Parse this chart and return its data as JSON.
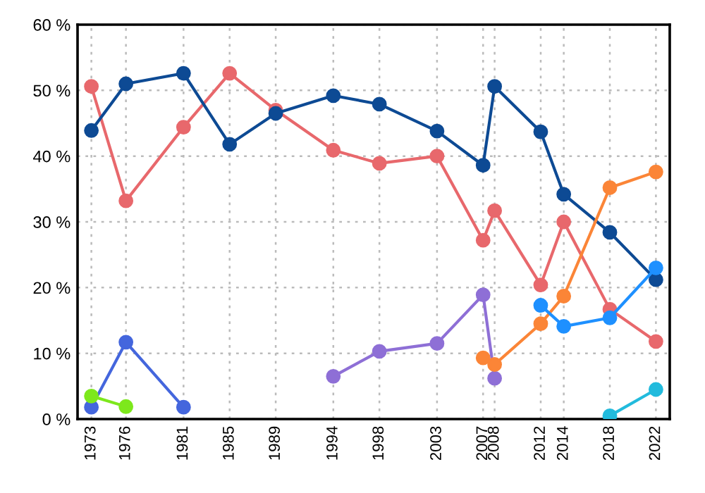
{
  "chart_data": {
    "type": "line",
    "marker": "circle",
    "line_style": "solid",
    "grid": true,
    "xlim": [
      1971.8,
      2023.2
    ],
    "xticks": [
      1973,
      1976,
      1981,
      1985,
      1989,
      1994,
      1998,
      2003,
      2007,
      2008,
      2012,
      2014,
      2018,
      2022
    ],
    "ylim": [
      0,
      60
    ],
    "yticks": [
      {
        "value": 0,
        "label": "0 %"
      },
      {
        "value": 10,
        "label": "10 %"
      },
      {
        "value": 20,
        "label": "20 %"
      },
      {
        "value": 30,
        "label": "30 %"
      },
      {
        "value": 40,
        "label": "40 %"
      },
      {
        "value": 50,
        "label": "50 %"
      },
      {
        "value": 60,
        "label": "60 %"
      }
    ],
    "series": [
      {
        "color": "#e8686c",
        "x": [
          1973,
          1976,
          1981,
          1985,
          1989,
          1994,
          1998,
          2003,
          2007,
          2008,
          2012,
          2014,
          2018,
          2022
        ],
        "values": [
          50.6,
          33.2,
          44.4,
          52.6,
          47.0,
          40.9,
          38.9,
          40.0,
          27.2,
          31.7,
          20.4,
          30.0,
          16.7,
          11.8
        ]
      },
      {
        "color": "#0d4a94",
        "x": [
          1973,
          1976,
          1981,
          1985,
          1989,
          1994,
          1998,
          2003,
          2007,
          2008,
          2012,
          2014,
          2018,
          2022
        ],
        "values": [
          43.9,
          51.0,
          52.6,
          41.8,
          46.5,
          49.2,
          47.9,
          43.8,
          38.6,
          50.6,
          43.7,
          34.2,
          28.4,
          21.2
        ]
      },
      {
        "color": "#4466dd",
        "x": [
          1973,
          1976,
          1981
        ],
        "values": [
          1.8,
          11.7,
          1.8
        ]
      },
      {
        "color": "#7de81c",
        "x": [
          1973,
          1976
        ],
        "values": [
          3.5,
          1.9
        ]
      },
      {
        "color": "#8e6fd6",
        "x": [
          1994,
          1998,
          2003,
          2007,
          2008
        ],
        "values": [
          6.5,
          10.3,
          11.5,
          18.9,
          6.2
        ]
      },
      {
        "color": "#fb8537",
        "x": [
          2007,
          2008,
          2012,
          2014,
          2018,
          2022
        ],
        "values": [
          9.3,
          8.3,
          14.5,
          18.7,
          35.2,
          37.6
        ]
      },
      {
        "color": "#1e90ff",
        "x": [
          2012,
          2014,
          2018,
          2022
        ],
        "values": [
          17.3,
          14.1,
          15.4,
          23.0
        ]
      },
      {
        "color": "#22bbdd",
        "x": [
          2018,
          2022
        ],
        "values": [
          0.5,
          4.5
        ]
      }
    ]
  }
}
